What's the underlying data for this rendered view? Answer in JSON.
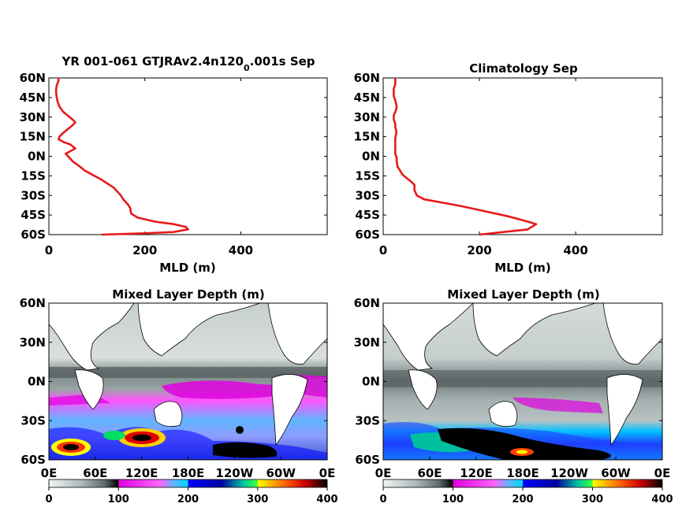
{
  "chart_data": [
    {
      "type": "line",
      "title": "YR 001-061 GTJRAv2.4n120",
      "title_subscript": "0",
      "title_suffix": ".001s Sep",
      "xlabel": "MLD (m)",
      "ylabel": "",
      "xlim": [
        0,
        580
      ],
      "ylim": [
        -60,
        60
      ],
      "xticks": [
        "0",
        "200",
        "400"
      ],
      "yticks": [
        "60N",
        "45N",
        "30N",
        "15N",
        "0N",
        "15S",
        "30S",
        "45S",
        "60S"
      ],
      "series_color": "#e8191a",
      "series": [
        {
          "x": [
            110,
            200,
            260,
            290,
            285,
            260,
            220,
            185,
            172,
            170,
            170,
            165,
            160,
            155,
            150,
            135,
            110,
            90,
            75,
            65,
            50,
            45,
            40,
            35,
            45,
            55,
            45,
            30,
            20,
            22,
            30,
            40,
            50,
            55,
            50,
            40,
            30,
            22,
            18,
            16,
            15,
            16,
            18,
            20,
            20
          ],
          "y": [
            -60,
            -59,
            -58,
            -56,
            -54,
            -52,
            -50,
            -47,
            -44,
            -42,
            -40,
            -37,
            -35,
            -33,
            -30,
            -24,
            -18,
            -14,
            -11,
            -8,
            -4,
            -2,
            0,
            2,
            4,
            6,
            9,
            11,
            13,
            15,
            18,
            21,
            24,
            26,
            28,
            31,
            34,
            38,
            42,
            46,
            50,
            54,
            56,
            58,
            60
          ]
        }
      ]
    },
    {
      "type": "line",
      "title": "Climatology Sep",
      "xlabel": "MLD (m)",
      "ylabel": "",
      "xlim": [
        0,
        580
      ],
      "ylim": [
        -60,
        60
      ],
      "xticks": [
        "0",
        "200",
        "400"
      ],
      "yticks": [
        "60N",
        "45N",
        "30N",
        "15N",
        "0N",
        "15S",
        "30S",
        "45S",
        "60S"
      ],
      "series_color": "#e8191a",
      "series": [
        {
          "x": [
            200,
            250,
            300,
            318,
            300,
            260,
            210,
            160,
            115,
            85,
            70,
            65,
            65,
            60,
            50,
            40,
            35,
            30,
            28,
            28,
            25,
            25,
            25,
            25,
            27,
            27,
            25,
            25,
            22,
            22,
            25,
            28,
            27,
            25,
            22,
            22,
            22,
            25,
            25,
            25
          ],
          "y": [
            -60,
            -58,
            -56,
            -52,
            -50,
            -46,
            -42,
            -38,
            -35,
            -33,
            -30,
            -26,
            -22,
            -20,
            -17,
            -14,
            -11,
            -8,
            -4,
            -1,
            2,
            6,
            10,
            14,
            17,
            20,
            22,
            25,
            28,
            31,
            34,
            37,
            40,
            43,
            46,
            49,
            52,
            55,
            58,
            60
          ]
        }
      ]
    },
    {
      "type": "heatmap",
      "title": "Mixed Layer Depth (m)",
      "xticks": [
        "0E",
        "60E",
        "120E",
        "180E",
        "120W",
        "60W",
        "0E"
      ],
      "yticks": [
        "60N",
        "30N",
        "0N",
        "30S",
        "60S"
      ],
      "ylim": [
        -60,
        60
      ],
      "colorbar": {
        "ticks": [
          "0",
          "100",
          "200",
          "300",
          "400"
        ],
        "range": [
          0,
          400
        ],
        "colors": [
          "#f2f2f2",
          "#b5c3c3",
          "#6e7a7a",
          "#2a2a2a",
          "#000000",
          "#e000e0",
          "#ff55ff",
          "#00c0ff",
          "#3fa9ff",
          "#0000ff",
          "#00c8a0",
          "#40ff40",
          "#ffff00",
          "#ff8000",
          "#ff0000",
          "#a00000",
          "#000000"
        ]
      }
    },
    {
      "type": "heatmap",
      "title": "Mixed Layer Depth (m)",
      "xticks": [
        "0E",
        "60E",
        "120E",
        "180E",
        "120W",
        "60W",
        "0E"
      ],
      "yticks": [
        "60N",
        "30N",
        "0N",
        "30S",
        "60S"
      ],
      "ylim": [
        -60,
        60
      ],
      "colorbar": {
        "ticks": [
          "0",
          "100",
          "200",
          "300",
          "400"
        ],
        "range": [
          0,
          400
        ],
        "colors": [
          "#f2f2f2",
          "#b5c3c3",
          "#6e7a7a",
          "#2a2a2a",
          "#000000",
          "#e000e0",
          "#ff55ff",
          "#00c0ff",
          "#3fa9ff",
          "#0000ff",
          "#00c8a0",
          "#40ff40",
          "#ffff00",
          "#ff8000",
          "#ff0000",
          "#a00000",
          "#000000"
        ]
      }
    }
  ]
}
